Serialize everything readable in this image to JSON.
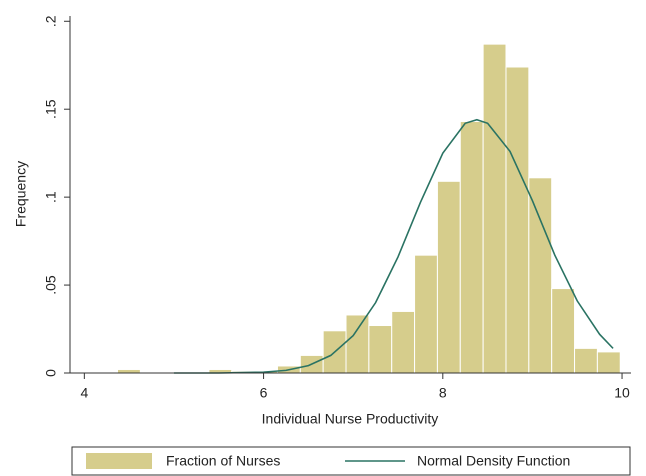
{
  "chart_data": {
    "type": "histogram",
    "xlabel": "Individual Nurse Productivity",
    "ylabel": "Frequency",
    "bins": [
      4.37,
      4.625,
      4.88,
      5.135,
      5.39,
      5.645,
      5.9,
      6.155,
      6.41,
      6.665,
      6.92,
      7.175,
      7.43,
      7.685,
      7.94,
      8.195,
      8.45,
      8.705,
      8.96,
      9.215,
      9.47,
      9.725,
      9.98
    ],
    "series": [
      {
        "name": "Fraction of Nurses",
        "color": "#d6cd8c",
        "values": [
          0.002,
          0,
          0,
          0,
          0.002,
          0.001,
          0.001,
          0.004,
          0.01,
          0.024,
          0.033,
          0.027,
          0.035,
          0.067,
          0.109,
          0.143,
          0.187,
          0.174,
          0.111,
          0.048,
          0.014,
          0.012
        ]
      }
    ],
    "curve": {
      "name": "Normal Density Function",
      "color": "#2a7363",
      "x": [
        5.0,
        5.5,
        6.0,
        6.25,
        6.5,
        6.75,
        7.0,
        7.25,
        7.5,
        7.75,
        8.0,
        8.25,
        8.38,
        8.5,
        8.75,
        9.0,
        9.25,
        9.5,
        9.75,
        9.9
      ],
      "values": [
        0,
        0,
        0.0005,
        0.0015,
        0.0042,
        0.01,
        0.0213,
        0.04,
        0.066,
        0.097,
        0.125,
        0.142,
        0.144,
        0.142,
        0.126,
        0.098,
        0.067,
        0.041,
        0.022,
        0.014
      ]
    },
    "xlim": [
      3.84,
      10.1
    ],
    "xticks": [
      4,
      6,
      8,
      10
    ],
    "ylim": [
      0,
      0.203
    ],
    "yticks": [
      0,
      {
        "value": 0.05,
        "label": ".05"
      },
      {
        "value": 0.1,
        "label": ".1"
      },
      {
        "value": 0.15,
        "label": ".15"
      },
      {
        "value": 0.2,
        "label": ".2"
      }
    ]
  }
}
